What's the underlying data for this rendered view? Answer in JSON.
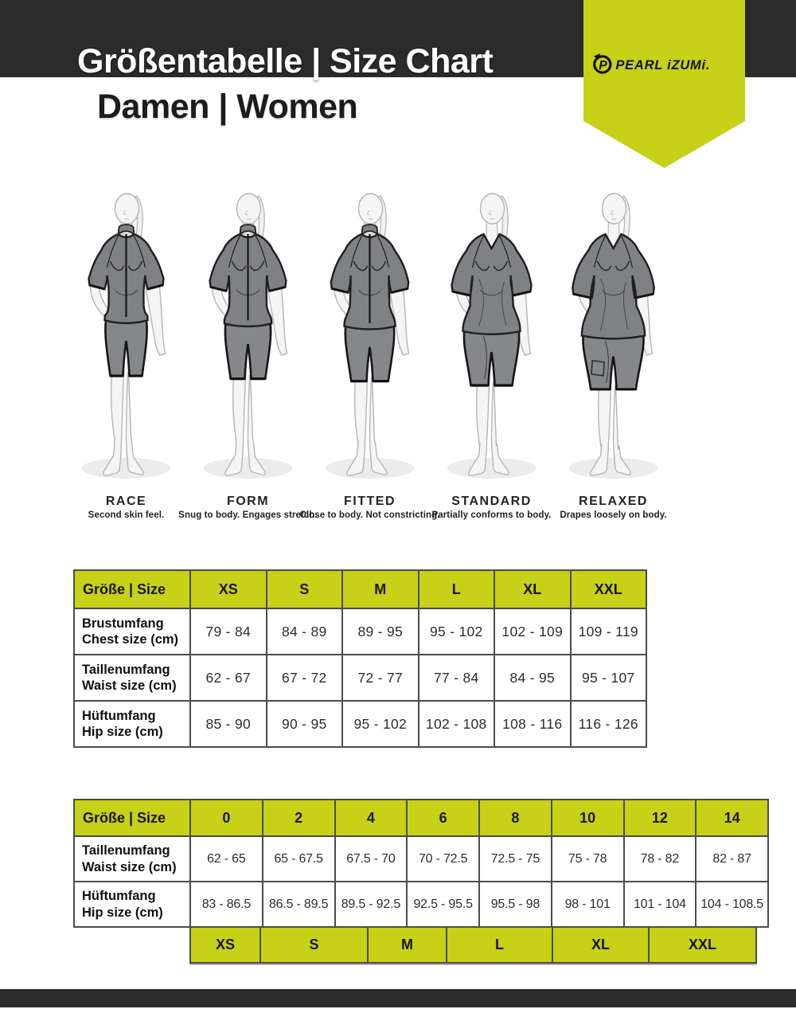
{
  "header": {
    "title": "Größentabelle | Size Chart",
    "subtitle": "Damen | Women",
    "brand": "PEARL iZUMi."
  },
  "colors": {
    "accent_lime": "#c6d117",
    "header_bar": "#2b2b2c",
    "table_border": "#4b4c4e",
    "garment_gray": "#7f8184"
  },
  "fits": [
    {
      "name": "RACE",
      "description": "Second skin feel."
    },
    {
      "name": "FORM",
      "description": "Snug to body. Engages stretch."
    },
    {
      "name": "FITTED",
      "description": "Close to body. Not constricting."
    },
    {
      "name": "STANDARD",
      "description": "Partially conforms to body."
    },
    {
      "name": "RELAXED",
      "description": "Drapes loosely on body."
    }
  ],
  "size_table_letters": {
    "header_label": "Größe | Size",
    "columns": [
      "XS",
      "S",
      "M",
      "L",
      "XL",
      "XXL"
    ],
    "rows": [
      {
        "label_de": "Brustumfang",
        "label_en": "Chest size (cm)",
        "values": [
          "79 - 84",
          "84 - 89",
          "89 - 95",
          "95 - 102",
          "102 - 109",
          "109 - 119"
        ]
      },
      {
        "label_de": "Taillenumfang",
        "label_en": "Waist size (cm)",
        "values": [
          "62 - 67",
          "67 - 72",
          "72 - 77",
          "77 - 84",
          "84 - 95",
          "95 - 107"
        ]
      },
      {
        "label_de": "Hüftumfang",
        "label_en": "Hip size (cm)",
        "values": [
          "85 - 90",
          "90 - 95",
          "95 - 102",
          "102 - 108",
          "108 - 116",
          "116 - 126"
        ]
      }
    ]
  },
  "size_table_numeric": {
    "header_label": "Größe | Size",
    "columns": [
      "0",
      "2",
      "4",
      "6",
      "8",
      "10",
      "12",
      "14"
    ],
    "rows": [
      {
        "label_de": "Taillenumfang",
        "label_en": "Waist size (cm)",
        "values": [
          "62 - 65",
          "65 - 67.5",
          "67.5 - 70",
          "70 - 72.5",
          "72.5 - 75",
          "75 - 78",
          "78 - 82",
          "82 - 87"
        ]
      },
      {
        "label_de": "Hüftumfang",
        "label_en": "Hip size (cm)",
        "values": [
          "83 - 86.5",
          "86.5 - 89.5",
          "89.5 - 92.5",
          "92.5 - 95.5",
          "95.5 - 98",
          "98 - 101",
          "101 - 104",
          "104 - 108.5"
        ]
      }
    ],
    "letter_row": [
      "XS",
      "S",
      "M",
      "L",
      "XL",
      "XXL"
    ]
  }
}
